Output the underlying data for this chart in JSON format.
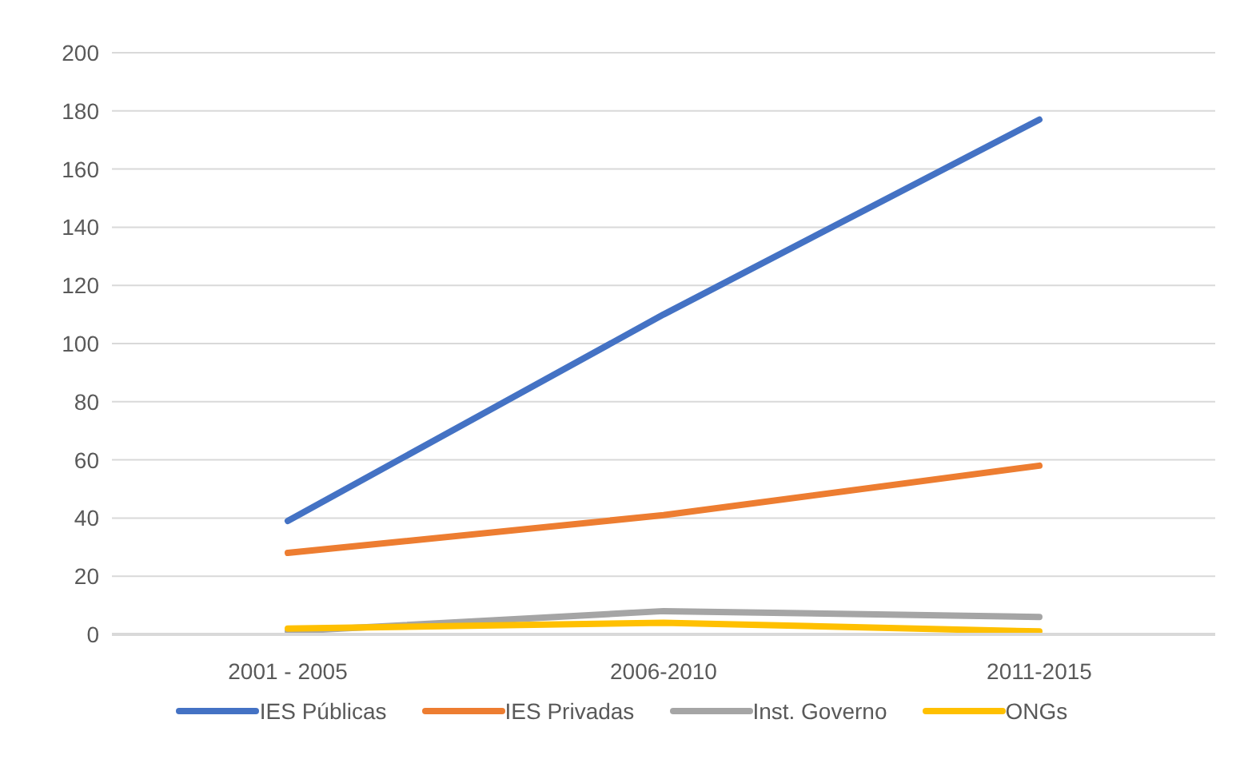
{
  "chart_data": {
    "type": "line",
    "categories": [
      "2001 - 2005",
      "2006-2010",
      "2011-2015"
    ],
    "series": [
      {
        "name": "IES Públicas",
        "color": "#4472c4",
        "values": [
          39,
          110,
          177
        ]
      },
      {
        "name": "IES Privadas",
        "color": "#ed7d31",
        "values": [
          28,
          41,
          58
        ]
      },
      {
        "name": "Inst. Governo",
        "color": "#a5a5a5",
        "values": [
          1,
          8,
          6
        ]
      },
      {
        "name": "ONGs",
        "color": "#ffc000",
        "values": [
          2,
          4,
          1
        ]
      }
    ],
    "ylim": [
      0,
      200
    ],
    "yticks": [
      0,
      20,
      40,
      60,
      80,
      100,
      120,
      140,
      160,
      180,
      200
    ],
    "grid": "y",
    "legend": "bottom",
    "marker": "none",
    "line_style": "solid"
  }
}
